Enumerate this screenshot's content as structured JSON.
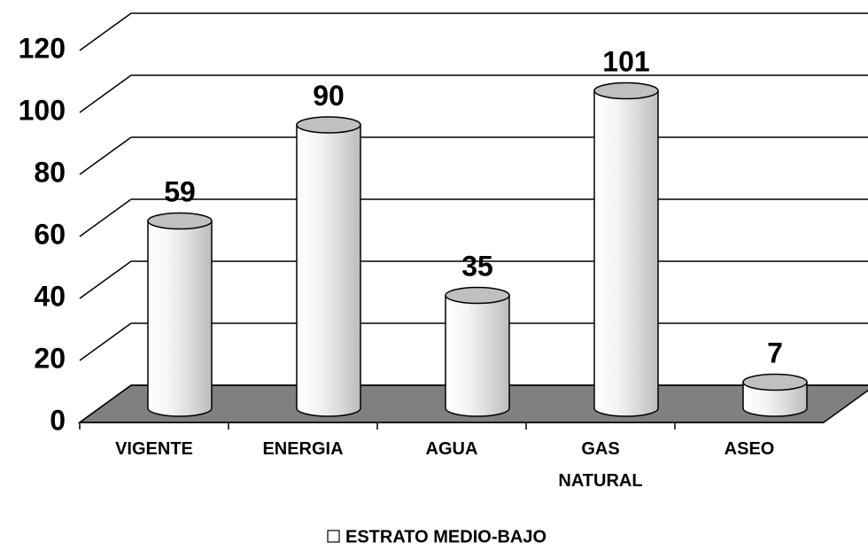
{
  "chart_data": {
    "type": "bar",
    "categories": [
      "VIGENTE",
      "ENERGIA",
      "AGUA",
      "GAS NATURAL",
      "ASEO"
    ],
    "series": [
      {
        "name": "ESTRATO MEDIO-BAJO",
        "color": "#ffffff",
        "values": [
          59,
          90,
          35,
          101,
          7
        ]
      }
    ],
    "ylim": [
      0,
      120
    ],
    "yticks": [
      0,
      20,
      40,
      60,
      80,
      100,
      120
    ],
    "grid": true,
    "legend": "bottom"
  }
}
